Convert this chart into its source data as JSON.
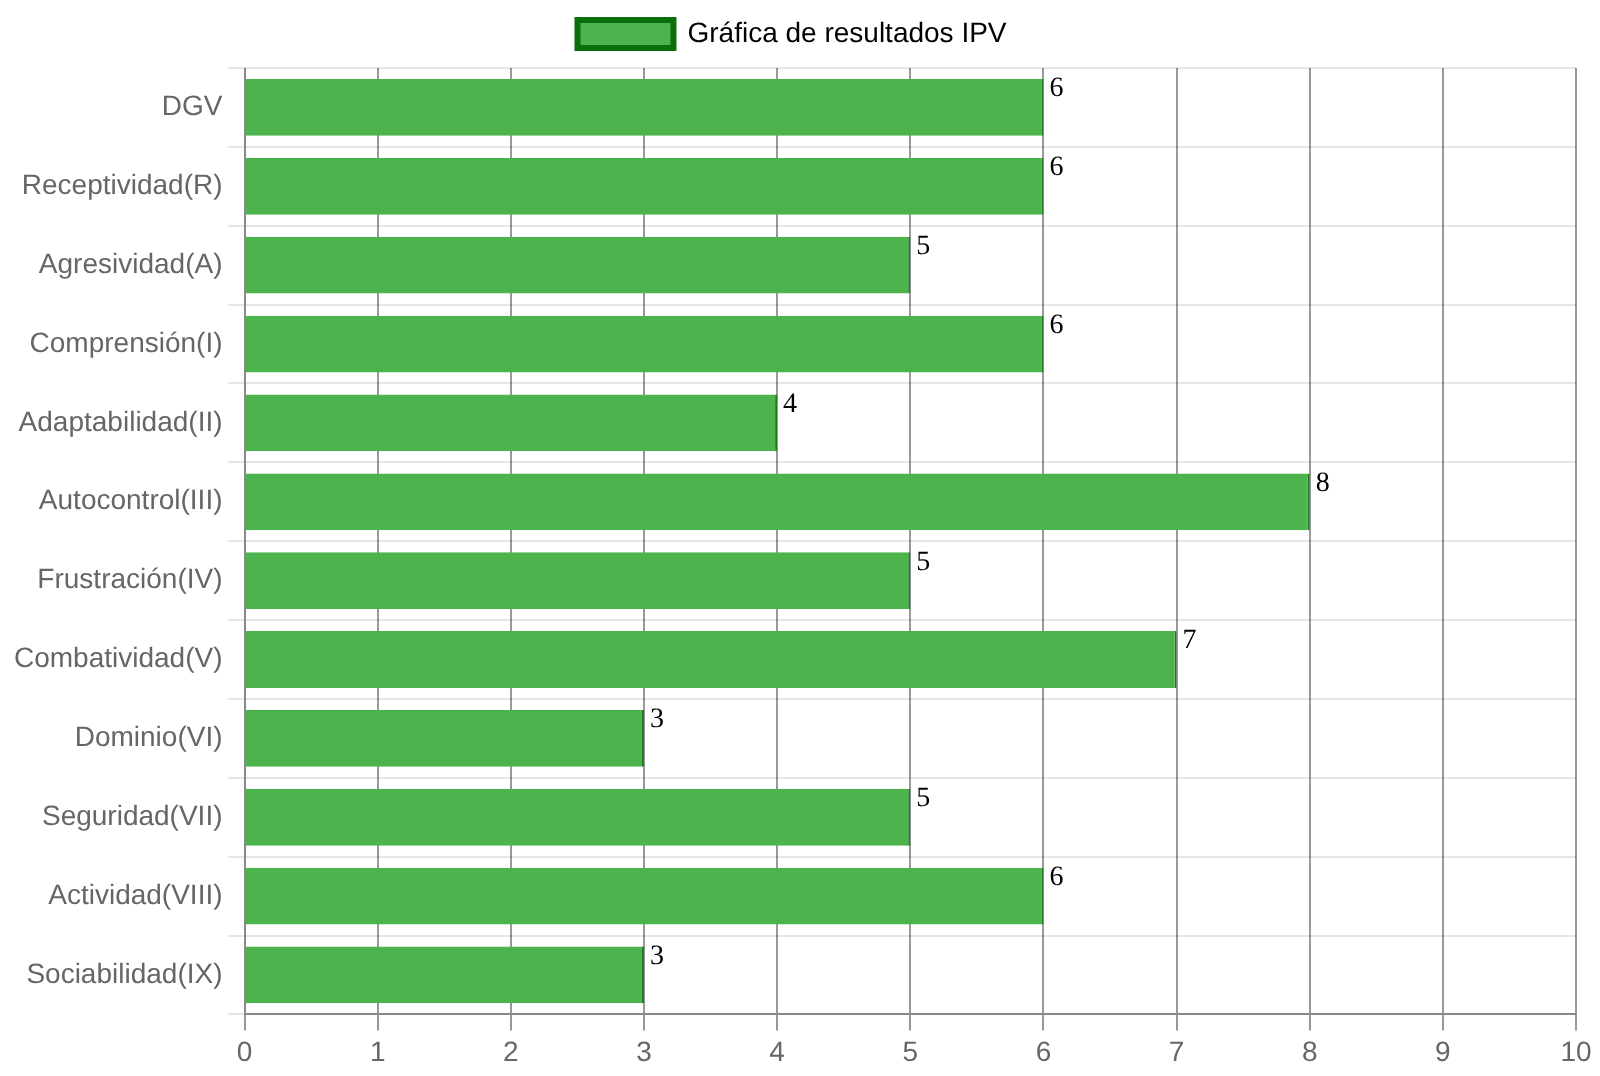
{
  "chart_data": {
    "type": "bar",
    "orientation": "horizontal",
    "categories": [
      "DGV",
      "Receptividad(R)",
      "Agresividad(A)",
      "Comprensión(I)",
      "Adaptabilidad(II)",
      "Autocontrol(III)",
      "Frustración(IV)",
      "Combatividad(V)",
      "Dominio(VI)",
      "Seguridad(VII)",
      "Actividad(VIII)",
      "Sociabilidad(IX)"
    ],
    "series": [
      {
        "name": "Gráfica de resultados IPV",
        "color": "#4db34d",
        "values": [
          6,
          6,
          5,
          6,
          4,
          8,
          5,
          7,
          3,
          5,
          6,
          3
        ]
      }
    ],
    "xlim": [
      0,
      10
    ],
    "xticks": [
      0,
      1,
      2,
      3,
      4,
      5,
      6,
      7,
      8,
      9,
      10
    ],
    "grid": true,
    "legend": "top",
    "data_labels": true
  }
}
